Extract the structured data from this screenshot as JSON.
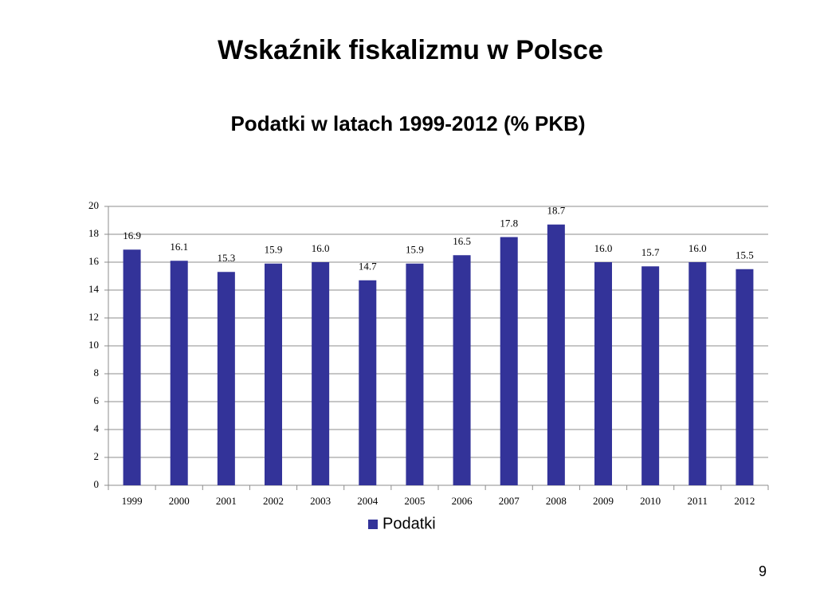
{
  "slide": {
    "title": "Wskaźnik fiskalizmu w Polsce",
    "page_number": "9"
  },
  "chart_data": {
    "type": "bar",
    "title": "Podatki w latach 1999-2012 (% PKB)",
    "categories": [
      "1999",
      "2000",
      "2001",
      "2002",
      "2003",
      "2004",
      "2005",
      "2006",
      "2007",
      "2008",
      "2009",
      "2010",
      "2011",
      "2012"
    ],
    "series": [
      {
        "name": "Podatki",
        "color": "#333399",
        "values": [
          16.9,
          16.1,
          15.3,
          15.9,
          16.0,
          14.7,
          15.9,
          16.5,
          17.8,
          18.7,
          16.0,
          15.7,
          16.0,
          15.5
        ],
        "value_labels": [
          "16.9",
          "16.1",
          "15.3",
          "15.9",
          "16.0",
          "14.7",
          "15.9",
          "16.5",
          "17.8",
          "18.7",
          "16.0",
          "15.7",
          "16.0",
          "15.5"
        ]
      }
    ],
    "ylim": [
      0,
      20
    ],
    "yticks": [
      0,
      2,
      4,
      6,
      8,
      10,
      12,
      14,
      16,
      18,
      20
    ],
    "grid": true,
    "legend": "bottom"
  }
}
